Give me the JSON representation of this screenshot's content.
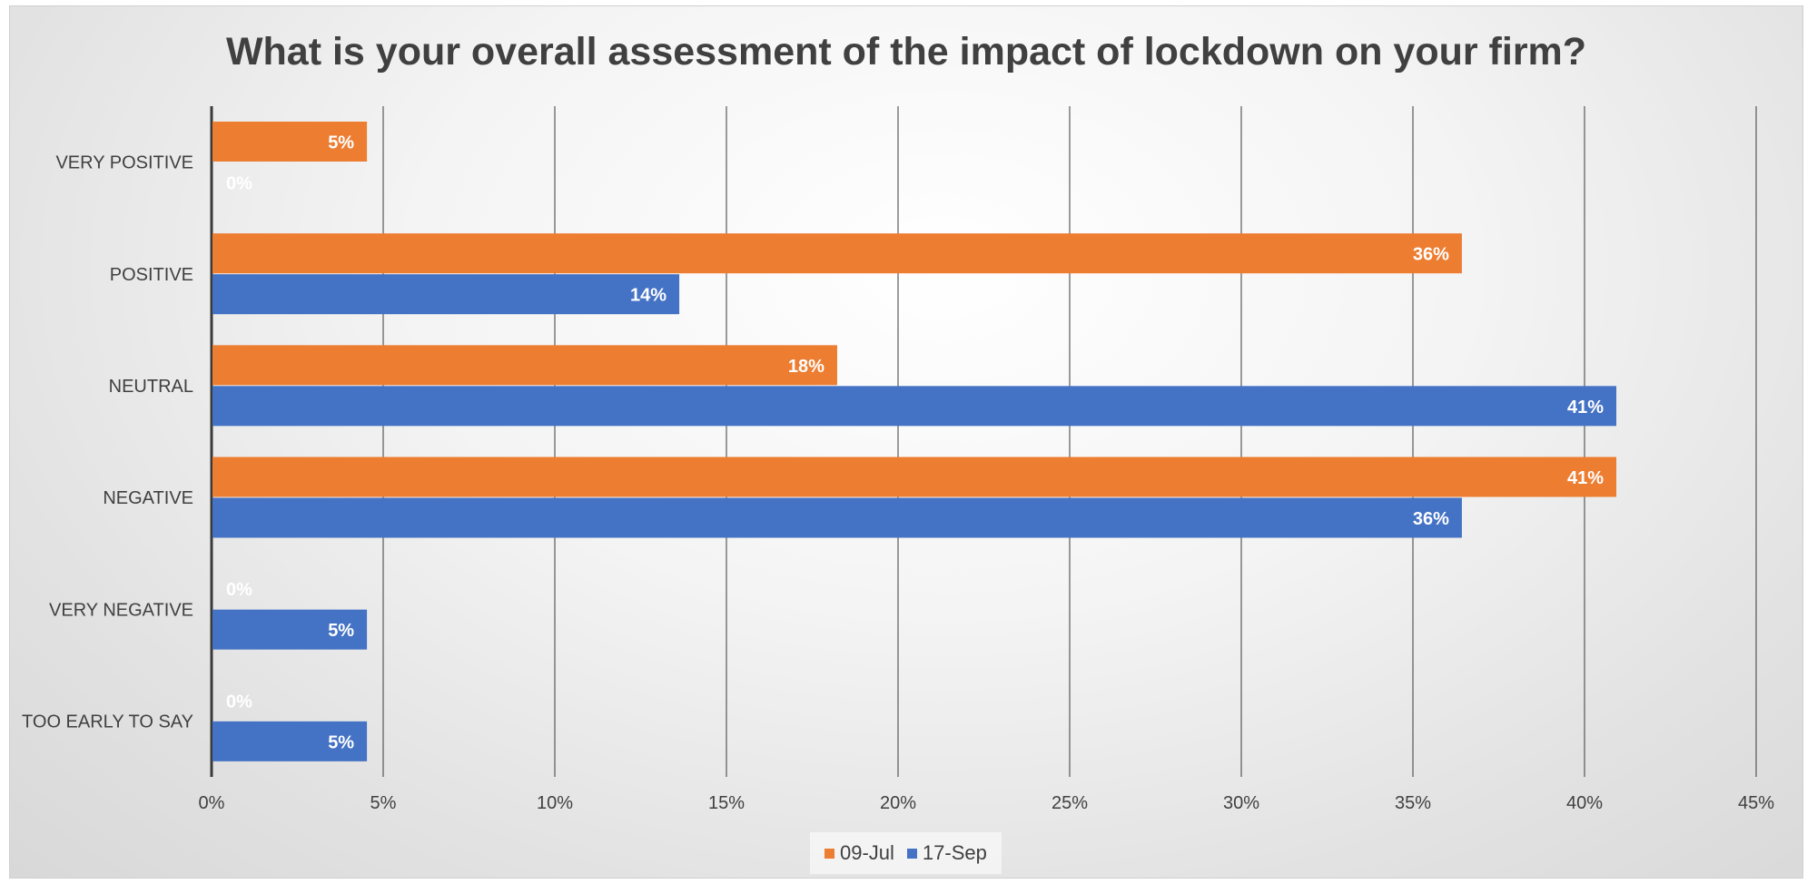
{
  "chart_data": {
    "type": "bar",
    "orientation": "horizontal",
    "title": "What is your overall assessment of the impact of lockdown on your firm?",
    "categories": [
      "VERY POSITIVE",
      "POSITIVE",
      "NEUTRAL",
      "NEGATIVE",
      "VERY NEGATIVE",
      "TOO EARLY TO SAY"
    ],
    "series": [
      {
        "name": "09-Jul",
        "color": "#ED7D31",
        "values": [
          4.5,
          36.4,
          18.2,
          40.9,
          0,
          0
        ],
        "labels": [
          "5%",
          "36%",
          "18%",
          "41%",
          "0%",
          "0%"
        ]
      },
      {
        "name": "17-Sep",
        "color": "#4472C4",
        "values": [
          0,
          13.6,
          40.9,
          36.4,
          4.5,
          4.5
        ],
        "labels": [
          "0%",
          "14%",
          "41%",
          "36%",
          "5%",
          "5%"
        ]
      }
    ],
    "xlim": [
      0,
      45
    ],
    "xticks": [
      0,
      5,
      10,
      15,
      20,
      25,
      30,
      35,
      40,
      45
    ],
    "xtick_labels": [
      "0%",
      "5%",
      "10%",
      "15%",
      "20%",
      "25%",
      "30%",
      "35%",
      "40%",
      "45%"
    ],
    "grid": true,
    "legend_position": "bottom"
  }
}
